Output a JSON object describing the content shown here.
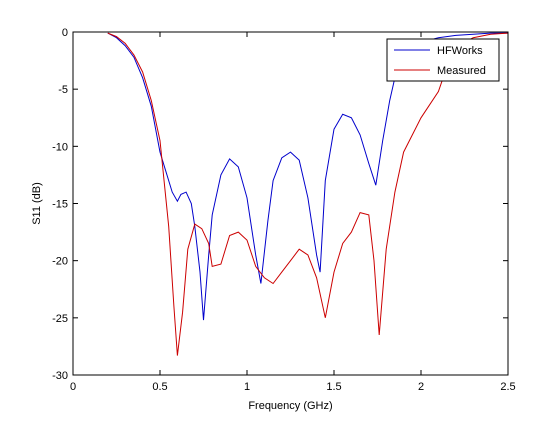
{
  "chart_data": {
    "type": "line",
    "title": "",
    "xlabel": "Frequency (GHz)",
    "ylabel": "S11 (dB)",
    "xlim": [
      0,
      2.5
    ],
    "ylim": [
      -30,
      0
    ],
    "xticks": [
      0,
      0.5,
      1,
      1.5,
      2,
      2.5
    ],
    "xtick_labels": [
      "0",
      "0.5",
      "1",
      "1.5",
      "2",
      "2.5"
    ],
    "yticks": [
      0,
      -5,
      -10,
      -15,
      -20,
      -25,
      -30
    ],
    "ytick_labels": [
      "0",
      "-5",
      "-10",
      "-15",
      "-20",
      "-25",
      "-30"
    ],
    "grid": false,
    "legend_position": "top-right",
    "series": [
      {
        "name": "HFWorks",
        "color": "#0000cc",
        "x": [
          0.2,
          0.25,
          0.3,
          0.35,
          0.4,
          0.45,
          0.5,
          0.53,
          0.57,
          0.6,
          0.62,
          0.65,
          0.68,
          0.7,
          0.73,
          0.75,
          0.78,
          0.8,
          0.85,
          0.9,
          0.95,
          1.0,
          1.05,
          1.08,
          1.12,
          1.15,
          1.2,
          1.25,
          1.3,
          1.35,
          1.4,
          1.42,
          1.45,
          1.5,
          1.55,
          1.6,
          1.65,
          1.7,
          1.74,
          1.78,
          1.82,
          1.85,
          1.9,
          1.95,
          2.0,
          2.1,
          2.2,
          2.3,
          2.4,
          2.5
        ],
        "y": [
          -0.1,
          -0.5,
          -1.2,
          -2.2,
          -4.0,
          -6.5,
          -10.5,
          -12.0,
          -14.0,
          -14.8,
          -14.2,
          -14.0,
          -15.0,
          -17.0,
          -21.0,
          -25.2,
          -19.5,
          -16.0,
          -12.5,
          -11.1,
          -11.8,
          -14.5,
          -19.5,
          -22.0,
          -16.5,
          -13.0,
          -11.0,
          -10.5,
          -11.2,
          -14.5,
          -19.5,
          -21.0,
          -13.0,
          -8.5,
          -7.2,
          -7.5,
          -9.0,
          -11.5,
          -13.4,
          -9.5,
          -6.0,
          -4.0,
          -2.5,
          -1.5,
          -0.9,
          -0.5,
          -0.3,
          -0.2,
          -0.1,
          -0.1
        ]
      },
      {
        "name": "Measured",
        "color": "#cc0000",
        "x": [
          0.2,
          0.25,
          0.3,
          0.35,
          0.4,
          0.45,
          0.5,
          0.55,
          0.58,
          0.6,
          0.63,
          0.66,
          0.7,
          0.74,
          0.78,
          0.8,
          0.85,
          0.9,
          0.95,
          1.0,
          1.05,
          1.1,
          1.15,
          1.2,
          1.25,
          1.3,
          1.35,
          1.4,
          1.45,
          1.5,
          1.55,
          1.6,
          1.65,
          1.7,
          1.73,
          1.76,
          1.8,
          1.85,
          1.9,
          2.0,
          2.1,
          2.15,
          2.2,
          2.3,
          2.4,
          2.5
        ],
        "y": [
          -0.1,
          -0.4,
          -1.0,
          -2.0,
          -3.5,
          -6.0,
          -9.5,
          -17.0,
          -24.0,
          -28.3,
          -24.5,
          -19.0,
          -16.8,
          -17.2,
          -18.5,
          -20.5,
          -20.3,
          -17.8,
          -17.5,
          -18.2,
          -20.5,
          -21.5,
          -22.0,
          -21.0,
          -20.0,
          -19.0,
          -19.5,
          -21.5,
          -25.0,
          -21.0,
          -18.5,
          -17.5,
          -15.8,
          -16.0,
          -20.0,
          -26.5,
          -19.0,
          -14.0,
          -10.5,
          -7.5,
          -5.2,
          -3.0,
          -1.3,
          -0.5,
          -0.2,
          -0.1
        ]
      }
    ]
  }
}
